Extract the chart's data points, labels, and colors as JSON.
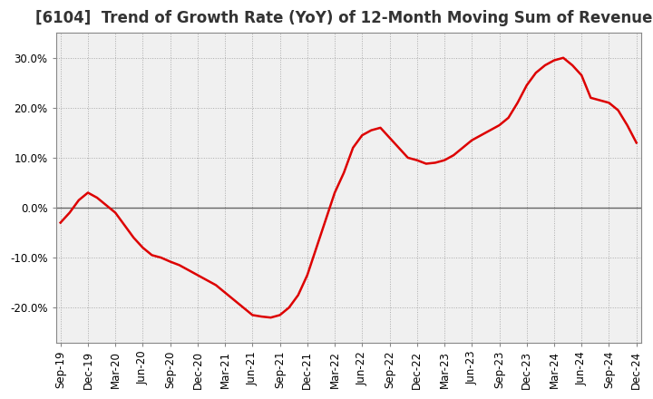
{
  "title": "[6104]  Trend of Growth Rate (YoY) of 12-Month Moving Sum of Revenues",
  "line_color": "#dd0000",
  "background_color": "#ffffff",
  "plot_bg_color": "#f0f0f0",
  "grid_color": "#aaaaaa",
  "ylim": [
    -0.27,
    0.35
  ],
  "yticks": [
    -0.2,
    -0.1,
    0.0,
    0.1,
    0.2,
    0.3
  ],
  "ytick_labels": [
    "-20.0%",
    "-10.0%",
    "0.0%",
    "10.0%",
    "20.0%",
    "30.0%"
  ],
  "values": [
    -0.03,
    -0.01,
    0.015,
    0.03,
    0.02,
    0.005,
    -0.01,
    -0.035,
    -0.06,
    -0.08,
    -0.095,
    -0.1,
    -0.108,
    -0.115,
    -0.125,
    -0.135,
    -0.145,
    -0.155,
    -0.17,
    -0.185,
    -0.2,
    -0.215,
    -0.218,
    -0.22,
    -0.215,
    -0.2,
    -0.175,
    -0.135,
    -0.08,
    -0.025,
    0.03,
    0.07,
    0.12,
    0.145,
    0.155,
    0.16,
    0.14,
    0.12,
    0.1,
    0.095,
    0.088,
    0.09,
    0.095,
    0.105,
    0.12,
    0.135,
    0.145,
    0.155,
    0.165,
    0.18,
    0.21,
    0.245,
    0.27,
    0.285,
    0.295,
    0.3,
    0.285,
    0.265,
    0.22,
    0.215,
    0.21,
    0.195,
    0.165,
    0.13
  ],
  "xtick_positions": [
    0,
    3,
    6,
    9,
    12,
    15,
    18,
    21,
    24,
    27,
    30,
    33,
    36,
    39,
    42,
    45,
    48,
    51,
    54,
    57,
    60,
    63
  ],
  "xtick_labels": [
    "Sep-19",
    "Dec-19",
    "Mar-20",
    "Jun-20",
    "Sep-20",
    "Dec-20",
    "Mar-21",
    "Jun-21",
    "Sep-21",
    "Dec-21",
    "Mar-22",
    "Jun-22",
    "Sep-22",
    "Dec-22",
    "Mar-23",
    "Jun-23",
    "Sep-23",
    "Dec-23",
    "Mar-24",
    "Jun-24",
    "Sep-24",
    "Dec-24"
  ],
  "title_fontsize": 12,
  "tick_fontsize": 8.5
}
